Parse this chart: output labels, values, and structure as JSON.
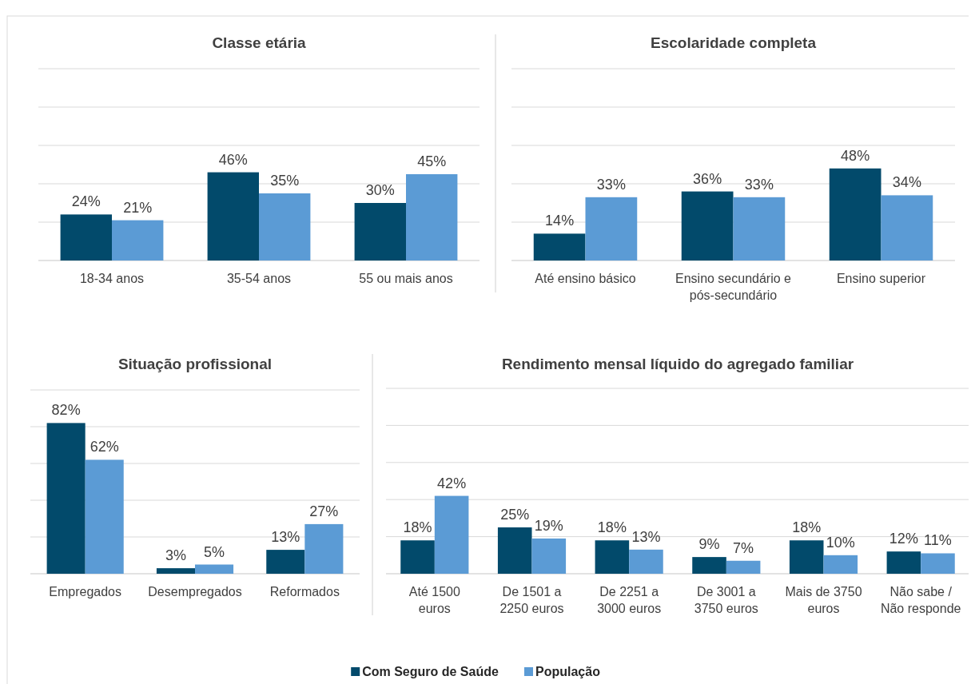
{
  "chart_data": [
    {
      "type": "bar",
      "title": "Classe etária",
      "categories": [
        "18-34 anos",
        "35-54 anos",
        "55 ou mais anos"
      ],
      "series": [
        {
          "name": "Com Seguro de Saúde",
          "color": "#024a6b",
          "values": [
            24,
            46,
            30
          ],
          "value_labels": [
            "24%",
            "46%",
            "30%"
          ]
        },
        {
          "name": "População",
          "color": "#5b9bd5",
          "values": [
            21,
            35,
            45
          ],
          "value_labels": [
            "21%",
            "35%",
            "45%"
          ]
        }
      ],
      "ylim": [
        0,
        100
      ],
      "yticks": [
        {
          "value": 0,
          "label": null
        },
        {
          "value": 20,
          "label": null
        },
        {
          "value": 40,
          "label": null
        },
        {
          "value": 60,
          "label": null
        },
        {
          "value": 80,
          "label": null
        },
        {
          "value": 100,
          "label": null
        }
      ],
      "tick_labels": "x",
      "grid": "y",
      "legend": "bottom"
    },
    {
      "type": "bar",
      "title": "Escolaridade completa",
      "categories": [
        "Até ensino básico",
        "Ensino secundário e pós-secundário",
        "Ensino superior"
      ],
      "series": [
        {
          "color": "#024a6b",
          "values": [
            14,
            36,
            48
          ],
          "value_labels": [
            "14%",
            "36%",
            "48%"
          ]
        },
        {
          "color": "#5b9bd5",
          "values": [
            33,
            33,
            34
          ],
          "value_labels": [
            "33%",
            "33%",
            "34%"
          ]
        }
      ],
      "ylim": [
        0,
        100
      ],
      "yticks": [
        {
          "value": 0,
          "label": null
        },
        {
          "value": 20,
          "label": null
        },
        {
          "value": 40,
          "label": null
        },
        {
          "value": 60,
          "label": null
        },
        {
          "value": 80,
          "label": null
        },
        {
          "value": 100,
          "label": null
        }
      ],
      "tick_labels": "x",
      "grid": "y"
    },
    {
      "type": "bar",
      "title": "Situação profissional",
      "categories": [
        "Empregados",
        "Desempregados",
        "Reformados"
      ],
      "series": [
        {
          "color": "#024a6b",
          "values": [
            82,
            3,
            13
          ],
          "value_labels": [
            "82%",
            "3%",
            "13%"
          ]
        },
        {
          "color": "#5b9bd5",
          "values": [
            62,
            5,
            27
          ],
          "value_labels": [
            "62%",
            "5%",
            "27%"
          ]
        }
      ],
      "ylim": [
        0,
        100
      ],
      "yticks": [
        {
          "value": 0,
          "label": null
        },
        {
          "value": 20,
          "label": null
        },
        {
          "value": 40,
          "label": null
        },
        {
          "value": 60,
          "label": null
        },
        {
          "value": 80,
          "label": null
        },
        {
          "value": 100,
          "label": null
        }
      ],
      "tick_labels": "x",
      "grid": "y"
    },
    {
      "type": "bar",
      "title": "Rendimento mensal líquido do agregado familiar",
      "categories": [
        "Até 1500 euros",
        "De 1501 a 2250 euros",
        "De 2251 a 3000 euros",
        "De 3001 a 3750 euros",
        "Mais de 3750 euros",
        "Não sabe / Não responde"
      ],
      "series": [
        {
          "color": "#024a6b",
          "values": [
            18,
            25,
            18,
            9,
            18,
            12
          ],
          "value_labels": [
            "18%",
            "25%",
            "18%",
            "9%",
            "18%",
            "12%"
          ]
        },
        {
          "color": "#5b9bd5",
          "values": [
            42,
            19,
            13,
            7,
            10,
            11
          ],
          "value_labels": [
            "42%",
            "19%",
            "13%",
            "7%",
            "10%",
            "11%"
          ]
        }
      ],
      "ylim": [
        0,
        100
      ],
      "yticks": [
        {
          "value": 0,
          "label": null
        },
        {
          "value": 20,
          "label": null
        },
        {
          "value": 40,
          "label": null
        },
        {
          "value": 60,
          "label": null
        },
        {
          "value": 80,
          "label": null
        },
        {
          "value": 100,
          "label": null
        }
      ],
      "tick_labels": "x",
      "grid": "y"
    }
  ]
}
